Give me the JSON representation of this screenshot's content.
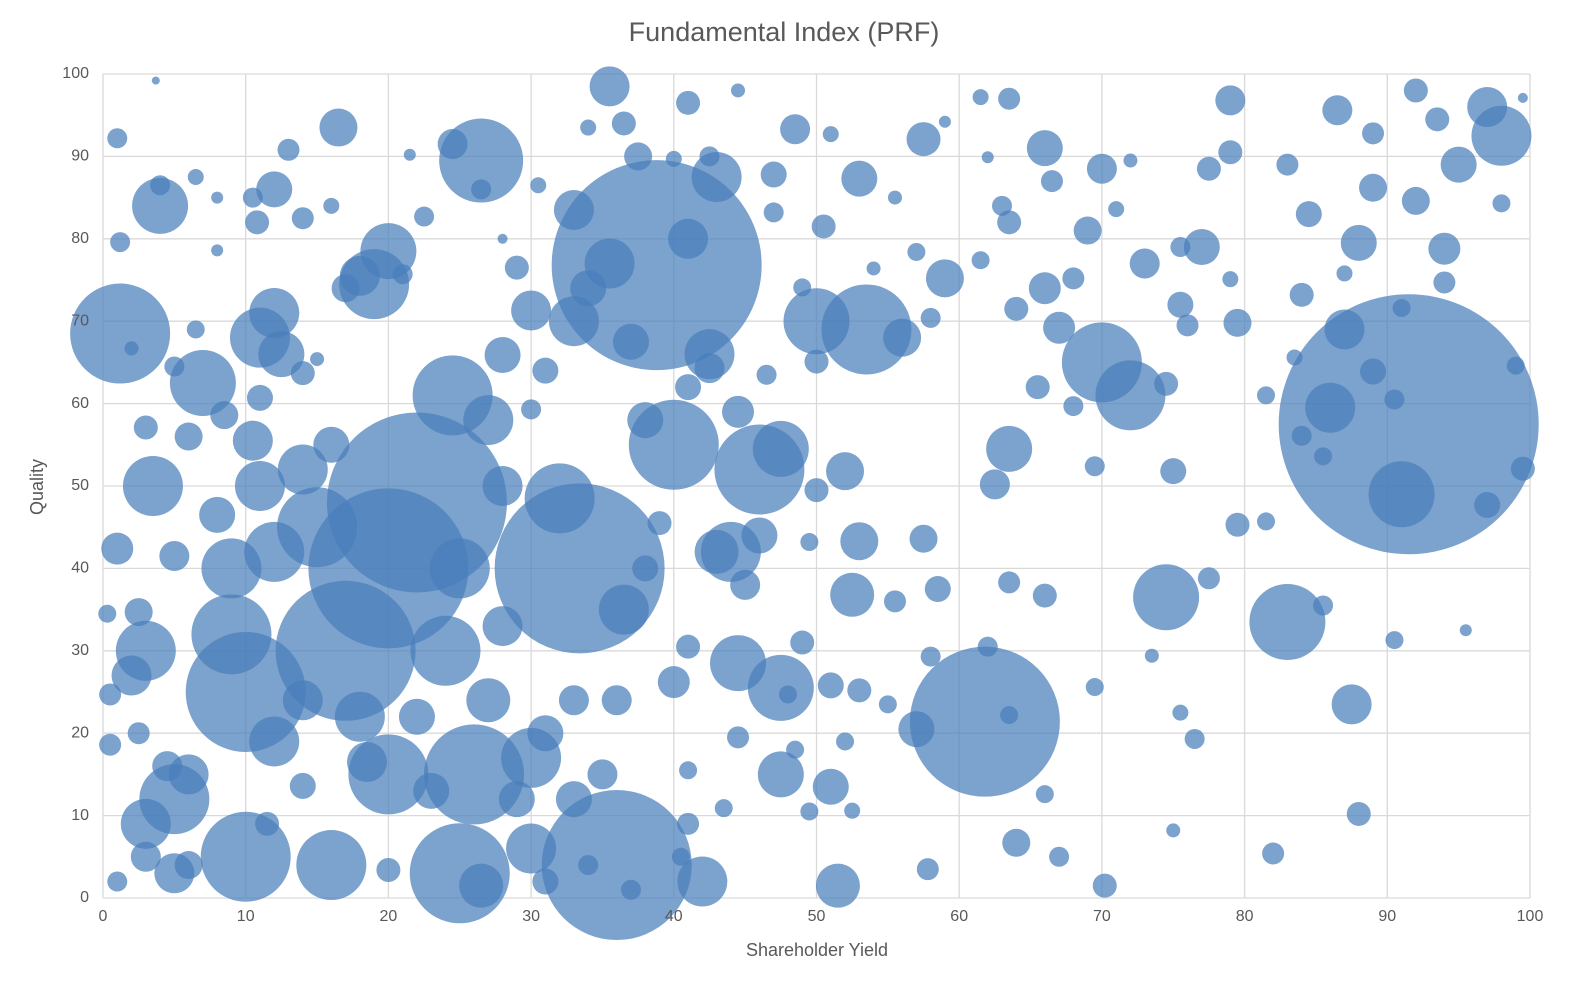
{
  "chart_data": {
    "type": "bubble",
    "title": "Fundamental Index (PRF)",
    "x_label": "Shareholder Yield",
    "y_label": "Quality",
    "color": "#4a7ebb",
    "grid": true,
    "xlim": [
      0,
      100
    ],
    "xticks": [
      0,
      10,
      20,
      30,
      40,
      50,
      60,
      70,
      80,
      90,
      100
    ],
    "ylim": [
      0,
      100
    ],
    "yticks": [
      0,
      10,
      20,
      30,
      40,
      50,
      60,
      70,
      80,
      90,
      100
    ],
    "x": [
      91.5,
      38.8,
      61.8,
      33.4,
      36,
      22,
      20,
      17,
      10,
      1.2,
      26.5,
      70,
      53.5,
      83,
      74.5,
      91,
      98,
      50,
      40,
      46,
      44,
      47.5,
      26,
      30,
      20,
      5,
      3,
      3.5,
      7,
      11,
      12,
      19,
      20,
      4,
      35.5,
      33,
      32,
      24.5,
      15,
      12,
      9,
      10,
      16,
      25,
      42,
      51.5,
      30,
      43,
      42.5,
      72,
      57,
      87.5,
      86,
      87,
      79,
      95,
      97,
      92,
      77,
      44.5,
      3.7,
      1,
      1.2,
      4,
      6.5,
      8,
      10.5,
      12,
      13,
      16.5,
      16,
      14,
      10.8,
      21.5,
      22.5,
      24.5,
      26.5,
      28,
      29,
      30.5,
      33,
      34,
      36.5,
      37.5,
      40,
      41,
      42.5,
      44.5,
      47,
      48.5,
      47,
      50.5,
      51,
      53,
      55.5,
      57.5,
      59,
      61.5,
      63.5,
      62,
      63,
      63.5,
      66,
      66.5,
      70,
      71,
      72,
      75.5,
      77.5,
      79,
      83,
      84.5,
      86.5,
      89,
      89,
      92,
      93.5,
      98,
      99.5,
      94,
      94,
      91,
      88,
      87,
      84,
      79,
      79.5,
      75.5,
      76,
      69,
      68,
      66,
      64,
      67,
      61.5,
      59,
      57,
      58,
      56,
      54,
      49,
      50,
      46.5,
      41,
      42.5,
      34,
      30,
      31,
      30,
      28,
      21,
      18,
      17,
      15,
      14,
      12.5,
      11,
      6,
      8.5,
      10.5,
      3,
      2,
      5,
      8,
      6.5,
      1,
      0.3,
      2.5,
      0.5,
      0.5,
      2.5,
      1,
      3,
      4.5,
      6,
      11.5,
      14,
      20,
      26.5,
      31,
      34,
      37,
      40.5,
      41,
      43.5,
      41,
      44.5,
      47.5,
      48.5,
      49.5,
      51,
      51,
      53,
      55,
      52,
      52.5,
      49,
      48,
      55.5,
      52.5,
      53,
      52,
      50,
      49.5,
      57.5,
      58.5,
      58,
      57.8,
      63.5,
      64,
      66,
      67,
      70.2,
      69.5,
      63.5,
      66,
      62,
      63.5,
      62.5,
      65.5,
      68,
      69.5,
      73,
      74.5,
      75,
      79.5,
      81.5,
      77.5,
      73.5,
      75.5,
      76.5,
      75,
      82,
      88,
      85.5,
      90.5,
      95.5,
      89,
      90.5,
      97,
      99.5,
      99,
      84,
      85.5,
      81.5,
      83.5,
      3,
      6,
      2,
      5,
      8,
      9,
      12,
      14,
      18,
      22,
      23,
      27,
      28,
      25,
      24,
      16,
      14,
      11,
      27,
      28,
      29,
      31,
      33,
      33,
      35,
      36,
      36.5,
      38,
      39,
      40,
      41,
      43,
      45,
      46,
      47.5,
      44.5,
      38,
      37,
      41,
      35.5,
      18.5,
      5
    ],
    "values": [
      57.5,
      76.8,
      21.4,
      40,
      4,
      48,
      40,
      30,
      25,
      68.5,
      89.5,
      65,
      69,
      33.5,
      36.5,
      49,
      92.5,
      70,
      55,
      52,
      42,
      25.5,
      15,
      17,
      15,
      12,
      30,
      50,
      62.5,
      68,
      71,
      74.5,
      78.5,
      84,
      98.5,
      70,
      48.5,
      61,
      45,
      42,
      32,
      5,
      4,
      3,
      2,
      1.5,
      6,
      87.5,
      66,
      61,
      20.5,
      23.5,
      59.5,
      69,
      90.5,
      89,
      96,
      98,
      79,
      28.5,
      99.2,
      92.2,
      79.6,
      86.5,
      87.5,
      85,
      85,
      86,
      90.8,
      93.5,
      84,
      82.5,
      82,
      90.2,
      82.7,
      91.5,
      86,
      80,
      76.5,
      86.5,
      83.5,
      93.5,
      94,
      90,
      89.7,
      96.5,
      90,
      98,
      87.8,
      93.3,
      83.2,
      81.5,
      92.7,
      87.3,
      85,
      92.1,
      94.2,
      97.2,
      97,
      89.9,
      84,
      82,
      91,
      87,
      88.5,
      83.6,
      89.5,
      79,
      88.5,
      96.8,
      89,
      83,
      95.6,
      92.8,
      86.2,
      84.6,
      94.5,
      84.3,
      97.1,
      78.8,
      74.7,
      71.6,
      79.5,
      75.8,
      73.2,
      75.1,
      69.8,
      72,
      69.5,
      81,
      75.2,
      74,
      71.5,
      69.2,
      77.4,
      75.2,
      78.4,
      70.4,
      68,
      76.4,
      74.1,
      65.1,
      63.5,
      62,
      64.3,
      74,
      71.3,
      64,
      59.3,
      65.9,
      75.7,
      75.5,
      74,
      65.4,
      63.7,
      66,
      60.7,
      56,
      58.6,
      55.5,
      57.1,
      66.7,
      64.5,
      78.6,
      69,
      42.4,
      34.5,
      34.7,
      24.7,
      18.6,
      20,
      2,
      5,
      16,
      4,
      9,
      13.6,
      3.4,
      1.5,
      2,
      4,
      1,
      5,
      9,
      10.9,
      15.5,
      19.5,
      15,
      18,
      10.5,
      13.5,
      25.8,
      25.2,
      23.5,
      19,
      10.6,
      31,
      24.7,
      36,
      36.8,
      43.3,
      51.8,
      49.5,
      43.2,
      43.6,
      37.5,
      29.3,
      3.5,
      22.2,
      6.7,
      12.6,
      5,
      1.5,
      25.6,
      38.3,
      36.7,
      30.5,
      54.5,
      50.2,
      62,
      59.7,
      52.4,
      77,
      62.4,
      51.8,
      45.3,
      45.7,
      38.8,
      29.4,
      22.5,
      19.3,
      8.2,
      5.4,
      10.2,
      35.5,
      31.3,
      32.5,
      63.9,
      60.5,
      47.7,
      52.1,
      64.6,
      56.1,
      53.6,
      61,
      65.6,
      9,
      15,
      27,
      41.5,
      46.5,
      40,
      19,
      24,
      22,
      22,
      13,
      24,
      33,
      40,
      30,
      55,
      52,
      50,
      58,
      50,
      12,
      20,
      24,
      12,
      15,
      24,
      35,
      40,
      45.5,
      26.2,
      30.5,
      42,
      38,
      44,
      54.5,
      59,
      58,
      67.5,
      80,
      77,
      16.5,
      3
    ],
    "sizes": [
      130,
      105,
      75,
      85,
      75,
      90,
      80,
      70,
      60,
      50,
      42,
      40,
      45,
      38,
      33,
      33,
      30,
      33,
      45,
      45,
      30,
      33,
      50,
      30,
      40,
      35,
      30,
      30,
      33,
      30,
      25,
      35,
      28,
      28,
      20,
      25,
      35,
      40,
      40,
      30,
      40,
      45,
      35,
      50,
      25,
      22,
      25,
      25,
      25,
      35,
      18,
      20,
      25,
      20,
      12,
      18,
      20,
      12,
      18,
      28,
      4,
      10,
      10,
      10,
      8,
      6,
      10,
      18,
      11,
      19,
      8,
      11,
      12,
      6,
      10,
      15,
      10,
      5,
      12,
      8,
      20,
      8,
      12,
      14,
      8,
      12,
      10,
      7,
      13,
      15,
      10,
      12,
      8,
      18,
      7,
      17,
      6,
      8,
      11,
      6,
      10,
      12,
      18,
      11,
      15,
      8,
      7,
      10,
      12,
      15,
      11,
      13,
      15,
      11,
      14,
      14,
      12,
      9,
      5,
      16,
      11,
      9,
      18,
      8,
      12,
      8,
      14,
      13,
      11,
      14,
      11,
      16,
      12,
      16,
      9,
      19,
      9,
      10,
      19,
      7,
      9,
      12,
      10,
      13,
      15,
      18,
      20,
      13,
      10,
      18,
      10,
      20,
      14,
      7,
      12,
      23,
      13,
      14,
      14,
      20,
      12,
      7,
      10,
      6,
      9,
      16,
      9,
      14,
      11,
      11,
      11,
      10,
      15,
      15,
      14,
      12,
      13,
      12,
      22,
      13,
      10,
      10,
      9,
      11,
      9,
      9,
      11,
      23,
      9,
      9,
      18,
      13,
      12,
      9,
      9,
      8,
      12,
      9,
      11,
      22,
      19,
      19,
      12,
      9,
      14,
      13,
      10,
      11,
      9,
      14,
      9,
      10,
      12,
      9,
      11,
      12,
      10,
      23,
      15,
      12,
      10,
      10,
      15,
      12,
      13,
      12,
      9,
      11,
      7,
      8,
      10,
      7,
      11,
      12,
      10,
      9,
      6,
      13,
      10,
      13,
      12,
      9,
      10,
      9,
      9,
      8,
      25,
      20,
      20,
      15,
      18,
      30,
      25,
      20,
      25,
      18,
      18,
      22,
      20,
      30,
      35,
      18,
      25,
      25,
      25,
      20,
      18,
      18,
      15,
      18,
      15,
      15,
      25,
      13,
      12,
      16,
      12,
      22,
      15,
      18,
      28,
      16,
      18,
      18,
      20,
      25,
      20,
      20
    ]
  }
}
